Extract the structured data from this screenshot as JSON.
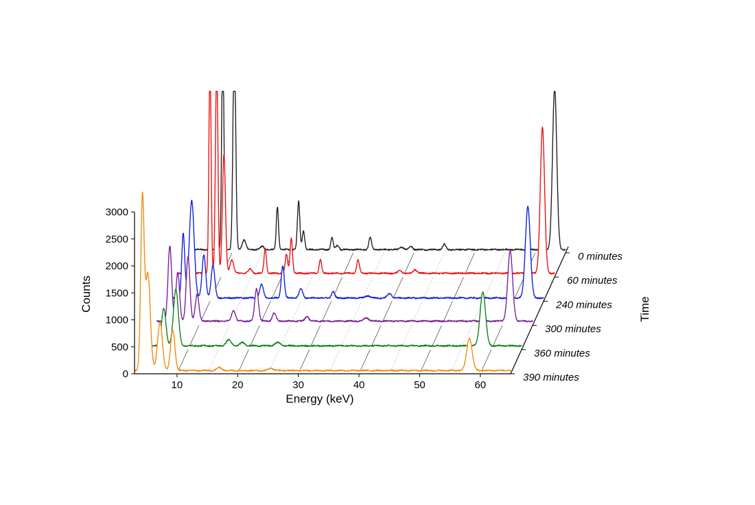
{
  "chart_data": {
    "type": "line",
    "title": "",
    "xlabel": "Energy (keV)",
    "ylabel": "Counts",
    "zlabel": "Time",
    "xlim": [
      3,
      65
    ],
    "ylim": [
      0,
      3000
    ],
    "x_ticks": [
      10,
      20,
      30,
      40,
      50,
      60
    ],
    "y_ticks": [
      0,
      500,
      1000,
      1500,
      2000,
      2500,
      3000
    ],
    "grid": true,
    "layout": "waterfall-3d",
    "series": [
      {
        "name": "0 minutes",
        "color": "#222222",
        "baseline": 60,
        "peaks": [
          [
            8.5,
            4000,
            0.18
          ],
          [
            10.4,
            4000,
            0.22
          ],
          [
            12.0,
            180,
            0.3
          ],
          [
            15.0,
            60,
            0.3
          ],
          [
            17.5,
            800,
            0.18
          ],
          [
            21.0,
            900,
            0.2
          ],
          [
            21.8,
            350,
            0.2
          ],
          [
            26.5,
            220,
            0.2
          ],
          [
            27.4,
            80,
            0.25
          ],
          [
            32.8,
            220,
            0.22
          ],
          [
            38.0,
            50,
            0.3
          ],
          [
            39.5,
            60,
            0.3
          ],
          [
            45.0,
            100,
            0.25
          ],
          [
            63.2,
            3000,
            0.35
          ]
        ]
      },
      {
        "name": "60 minutes",
        "color": "#ee1111",
        "baseline": 70,
        "peaks": [
          [
            8.2,
            4000,
            0.18
          ],
          [
            9.3,
            4000,
            0.2
          ],
          [
            10.5,
            2200,
            0.25
          ],
          [
            11.8,
            250,
            0.3
          ],
          [
            14.8,
            80,
            0.3
          ],
          [
            17.3,
            450,
            0.2
          ],
          [
            20.8,
            350,
            0.2
          ],
          [
            21.6,
            650,
            0.2
          ],
          [
            26.4,
            250,
            0.2
          ],
          [
            32.6,
            250,
            0.22
          ],
          [
            39.5,
            50,
            0.3
          ],
          [
            42.0,
            70,
            0.3
          ],
          [
            63.0,
            2700,
            0.35
          ]
        ]
      },
      {
        "name": "240 minutes",
        "color": "#1122dd",
        "baseline": 60,
        "peaks": [
          [
            5.6,
            1200,
            0.25
          ],
          [
            7.0,
            1800,
            0.4
          ],
          [
            9.0,
            800,
            0.3
          ],
          [
            10.5,
            600,
            0.3
          ],
          [
            18.5,
            250,
            0.3
          ],
          [
            22.0,
            600,
            0.25
          ],
          [
            25.0,
            170,
            0.3
          ],
          [
            30.3,
            120,
            0.25
          ],
          [
            36.0,
            40,
            0.4
          ],
          [
            39.6,
            80,
            0.35
          ],
          [
            62.4,
            1700,
            0.4
          ]
        ]
      },
      {
        "name": "300 minutes",
        "color": "#7a1f9e",
        "baseline": 80,
        "peaks": [
          [
            5.2,
            1400,
            0.3
          ],
          [
            6.5,
            900,
            0.3
          ],
          [
            8.2,
            1200,
            0.3
          ],
          [
            9.7,
            500,
            0.3
          ],
          [
            15.7,
            200,
            0.3
          ],
          [
            19.5,
            600,
            0.3
          ],
          [
            22.4,
            150,
            0.3
          ],
          [
            27.8,
            90,
            0.3
          ],
          [
            37.6,
            60,
            0.4
          ],
          [
            61.3,
            1300,
            0.4
          ]
        ]
      },
      {
        "name": "360 minutes",
        "color": "#11801a",
        "baseline": 70,
        "peaks": [
          [
            6.0,
            700,
            0.35
          ],
          [
            8.0,
            1050,
            0.4
          ],
          [
            16.7,
            110,
            0.4
          ],
          [
            19.0,
            60,
            0.4
          ],
          [
            24.8,
            60,
            0.45
          ],
          [
            58.6,
            1000,
            0.45
          ]
        ]
      },
      {
        "name": "390 minutes",
        "color": "#f58a12",
        "baseline": 60,
        "peaks": [
          [
            4.3,
            3150,
            0.28
          ],
          [
            5.2,
            1800,
            0.4
          ],
          [
            7.2,
            900,
            0.4
          ],
          [
            9.3,
            750,
            0.35
          ],
          [
            17.0,
            55,
            0.4
          ],
          [
            25.5,
            45,
            0.4
          ],
          [
            58.2,
            600,
            0.45
          ]
        ]
      }
    ]
  }
}
